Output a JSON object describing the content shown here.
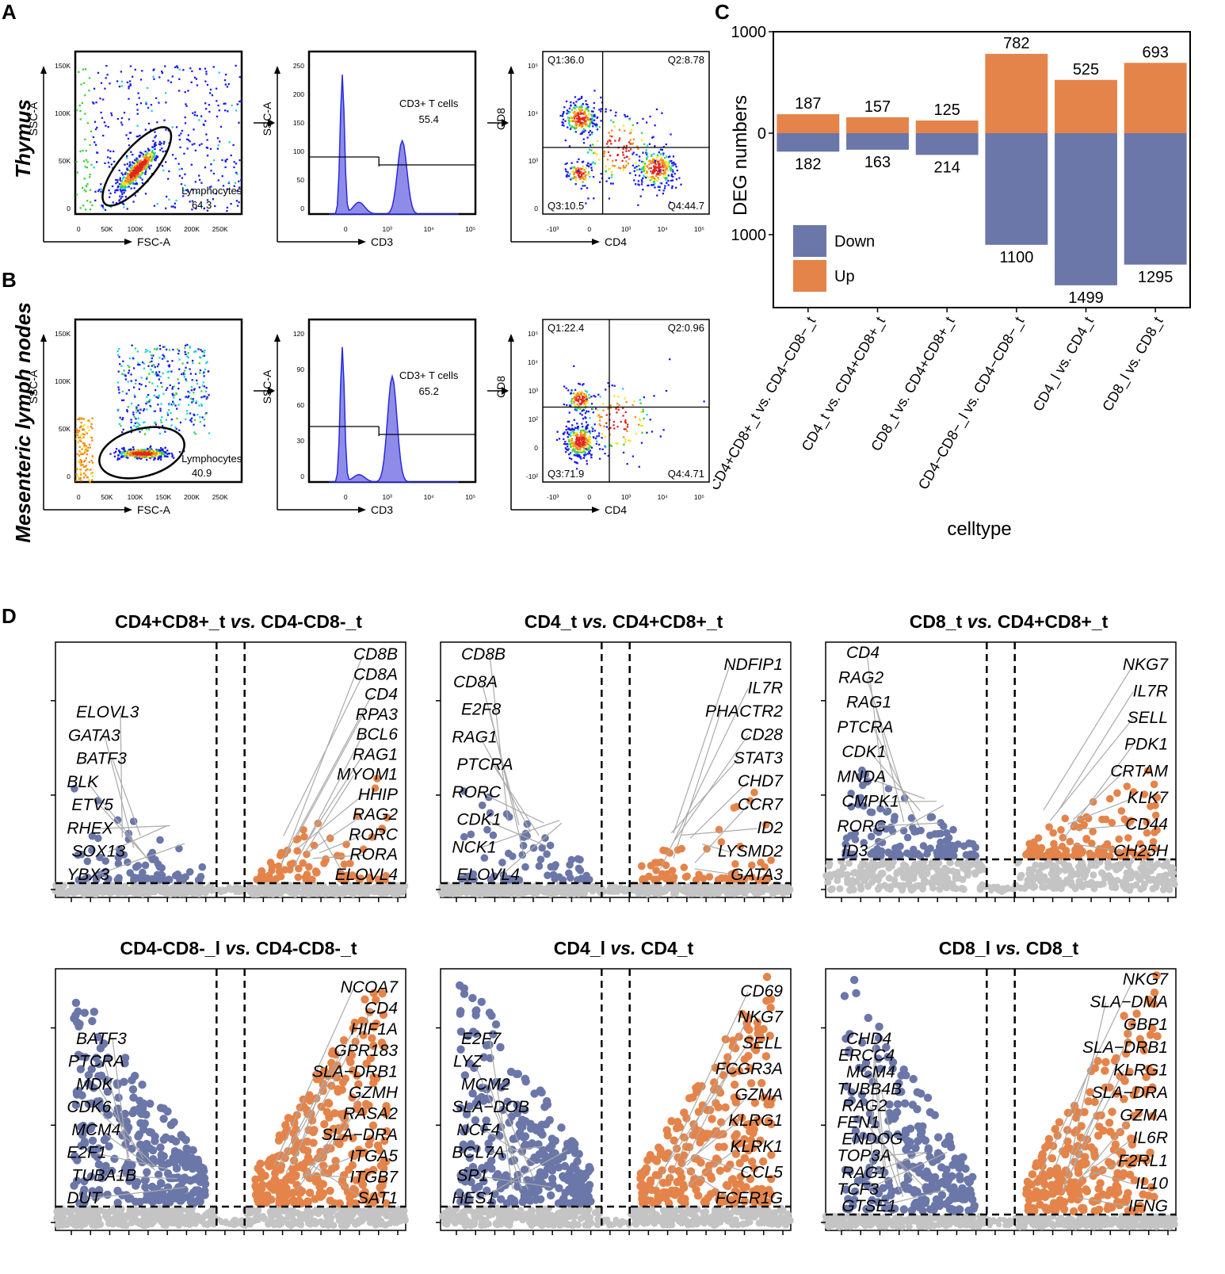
{
  "panel_labels": {
    "a": "A",
    "b": "B",
    "c": "C",
    "d": "D"
  },
  "colors": {
    "down": "#6b77a8",
    "up": "#e4844a",
    "gray": "#c4c4c4"
  },
  "flow": {
    "rows": [
      {
        "tissue": "Thymus",
        "gate": {
          "label": "Lymphocytes",
          "value": "64.3",
          "xlabel": "FSC-A",
          "ylabel": "SSC-A",
          "xticks": [
            "0",
            "50K",
            "100K",
            "150K",
            "200K",
            "250K"
          ],
          "yticks": [
            "0",
            "50K",
            "100K",
            "150K"
          ]
        },
        "hist": {
          "label": "CD3+ T cells",
          "value": "55.4",
          "xlabel": "CD3",
          "ylabel": "SSC-A",
          "xticks": [
            "0",
            "10³",
            "10⁴",
            "10⁵"
          ],
          "yticks": [
            "0",
            "50",
            "100",
            "150",
            "200",
            "250"
          ]
        },
        "quad": {
          "q1": "Q1:36.0",
          "q2": "Q2:8.78",
          "q3": "Q3:10.5",
          "q4": "Q4:44.7",
          "xlabel": "CD4",
          "ylabel": "CD8",
          "xticks": [
            "-10³",
            "0",
            "10³",
            "10⁴",
            "10⁵"
          ],
          "yticks": [
            "0",
            "10³",
            "10⁴",
            "10⁵"
          ]
        }
      },
      {
        "tissue": "Mesenteric lymph nodes",
        "gate": {
          "label": "Lymphocytes",
          "value": "40.9",
          "xlabel": "FSC-A",
          "ylabel": "SSC-A",
          "xticks": [
            "0",
            "50K",
            "100K",
            "150K",
            "200K",
            "250K"
          ],
          "yticks": [
            "0",
            "50K",
            "100K",
            "150K"
          ]
        },
        "hist": {
          "label": "CD3+ T cells",
          "value": "65.2",
          "xlabel": "CD3",
          "ylabel": "SSC-A",
          "xticks": [
            "0",
            "10³",
            "10⁴",
            "10⁵"
          ],
          "yticks": [
            "0",
            "30",
            "60",
            "90",
            "120"
          ]
        },
        "quad": {
          "q1": "Q1:22.4",
          "q2": "Q2:0.96",
          "q3": "Q3:71.9",
          "q4": "Q4:4.71",
          "xlabel": "CD4",
          "ylabel": "CD8",
          "xticks": [
            "-10³",
            "0",
            "10³",
            "10⁴",
            "10⁵"
          ],
          "yticks": [
            "-10²",
            "0",
            "10²",
            "10³",
            "10⁴",
            "10⁵"
          ]
        }
      }
    ]
  },
  "chart_data": [
    {
      "type": "bar",
      "title": "",
      "xlabel": "celltype",
      "ylabel": "DEG numbers",
      "categories": [
        "CD4+CD8+_t vs. CD4−CD8−_t",
        "CD4_t vs. CD4+CD8+_t",
        "CD8_t vs. CD4+CD8+_t",
        "CD4−CD8−_l vs. CD4−CD8−_t",
        "CD4_l vs. CD4_t",
        "CD8_l vs. CD8_t"
      ],
      "series": [
        {
          "name": "Up",
          "values": [
            187,
            157,
            125,
            782,
            525,
            693
          ]
        },
        {
          "name": "Down",
          "values": [
            182,
            163,
            214,
            1100,
            1499,
            1295
          ]
        }
      ],
      "ylim": [
        -1700,
        1000
      ],
      "yticks": [
        "1000",
        "0",
        "1000"
      ],
      "legend": [
        "Down",
        "Up"
      ],
      "legend_position": "bottom-left"
    },
    {
      "type": "scatter",
      "panels": [
        {
          "a": "CD4+CD8+_t ",
          "vs": "vs.",
          "b": " CD4-CD8-_t",
          "down_labels": [
            "ELOVL3",
            "GATA3",
            "BATF3",
            "BLK",
            "ETV5",
            "RHEX",
            "SOX13",
            "YBX3"
          ],
          "up_labels": [
            "CD8B",
            "CD8A",
            "CD4",
            "RPA3",
            "BCL6",
            "RAG1",
            "MYOM1",
            "HHIP",
            "RAG2",
            "RORC",
            "RORA",
            "ELOVL4"
          ]
        },
        {
          "a": "CD4_t ",
          "vs": "vs.",
          "b": " CD4+CD8+_t",
          "down_labels": [
            "CD8B",
            "CD8A",
            "E2F8",
            "RAG1",
            "PTCRA",
            "RORC",
            "CDK1",
            "NCK1",
            "ELOVL4"
          ],
          "up_labels": [
            "NDFIP1",
            "IL7R",
            "PHACTR2",
            "CD28",
            "STAT3",
            "CHD7",
            "CCR7",
            "ID2",
            "LYSMD2",
            "GATA3"
          ]
        },
        {
          "a": "CD8_t ",
          "vs": "vs.",
          "b": " CD4+CD8+_t",
          "down_labels": [
            "CD4",
            "RAG2",
            "RAG1",
            "PTCRA",
            "CDK1",
            "MNDA",
            "CMPK1",
            "RORC",
            "ID3"
          ],
          "up_labels": [
            "NKG7",
            "IL7R",
            "SELL",
            "PDK1",
            "CRTAM",
            "KLK7",
            "CD44",
            "CH25H"
          ]
        },
        {
          "a": "CD4-CD8-_l ",
          "vs": "vs.",
          "b": " CD4-CD8-_t",
          "down_labels": [
            "BATF3",
            "PTCRA",
            "MDK",
            "CDK6",
            "MCM4",
            "E2F1",
            "TUBA1B",
            "DUT"
          ],
          "up_labels": [
            "NCOA7",
            "CD4",
            "HIF1A",
            "GPR183",
            "SLA−DRB1",
            "GZMH",
            "RASA2",
            "SLA−DRA",
            "ITGA5",
            "ITGB7",
            "SAT1"
          ]
        },
        {
          "a": "CD4_l ",
          "vs": "vs.",
          "b": " CD4_t",
          "down_labels": [
            "E2F7",
            "LYZ",
            "MCM2",
            "SLA−DOB",
            "NCF4",
            "BCL7A",
            "SP1",
            "HES1"
          ],
          "up_labels": [
            "CD69",
            "NKG7",
            "SELL",
            "FCGR3A",
            "GZMA",
            "KLRG1",
            "KLRK1",
            "CCL5",
            "FCER1G"
          ]
        },
        {
          "a": "CD8_l ",
          "vs": "vs.",
          "b": " CD8_t",
          "down_labels": [
            "CHD4",
            "ERCC4",
            "MCM4",
            "TUBB4B",
            "RAG2",
            "FEN1",
            "ENDOG",
            "TOP3A",
            "RAG1",
            "TCF3",
            "GTSE1"
          ],
          "up_labels": [
            "NKG7",
            "SLA−DMA",
            "GBP1",
            "SLA−DRB1",
            "KLRG1",
            "SLA−DRA",
            "GZMA",
            "IL6R",
            "F2RL1",
            "IL10",
            "IFNG"
          ]
        }
      ]
    }
  ]
}
